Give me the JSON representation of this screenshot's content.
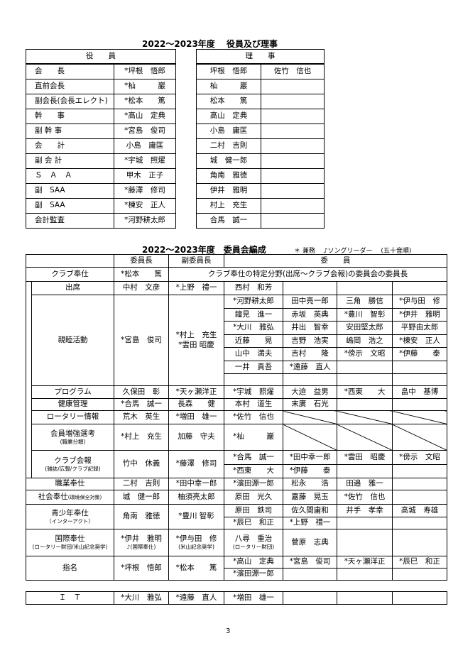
{
  "officers_section": {
    "title": "2022～2023年度　 役員及び理事",
    "officers_header": "役　　員",
    "directors_header": "理　　事",
    "officers": [
      {
        "role": "会　　長",
        "name": "*坪根　悟郎"
      },
      {
        "role": "直前会長",
        "name": "*杣　　　巖"
      },
      {
        "role": "副会長(会長エレクト)",
        "name": "*松本　　篤"
      },
      {
        "role": "幹　　事",
        "name": "*高山　定典"
      },
      {
        "role": "副 幹 事",
        "name": "*宮島　俊司"
      },
      {
        "role": "会　　計",
        "name": "小島　庸匡"
      },
      {
        "role": "副 会 計",
        "name": "*宇城　照燿"
      },
      {
        "role": "Ｓ　Ａ　Ａ",
        "name": "甲木　正子"
      },
      {
        "role": "副　SAA",
        "name": "*藤澤　修司"
      },
      {
        "role": "副　SAA",
        "name": "*棟安　正人"
      },
      {
        "role": "会計監査",
        "name": "*河野耕太郎"
      }
    ],
    "directors": [
      [
        "坪根　悟郎",
        "佐竹　信也"
      ],
      [
        "杣　　　巖",
        ""
      ],
      [
        "松本　　篤",
        ""
      ],
      [
        "高山　定典",
        ""
      ],
      [
        "小島　庸匡",
        ""
      ],
      [
        "二村　吉則",
        ""
      ],
      [
        "城　健一郎",
        ""
      ],
      [
        "角南　雅徳",
        ""
      ],
      [
        "伊井　雅明",
        ""
      ],
      [
        "村上　充生",
        ""
      ],
      [
        "合馬　誠一",
        ""
      ]
    ]
  },
  "committees": {
    "title": "2022～2023年度　委員会編成",
    "legend": "＊ 兼務　 ♪ソングリーダー　 (五十音順)",
    "headers": {
      "chair": "委員長",
      "vice": "副委員長",
      "members": "委　　員"
    },
    "club_service": {
      "label": "クラブ奉仕",
      "chair": "*松本　　篤",
      "note": "クラブ奉仕の特定分野(出席～クラブ会報)の委員会の委員長"
    },
    "items": [
      {
        "label": "出席",
        "indent": true,
        "chair": "中村　文彦",
        "vice": "*上野　禮一",
        "members": [
          [
            "西村　和芳",
            "",
            "",
            ""
          ]
        ]
      },
      {
        "label": "親睦活動",
        "indent": true,
        "chair": "*宮島　俊司",
        "vice": [
          "*村上　充生",
          "*雲田 昭慶"
        ],
        "members": [
          [
            "*河野耕太郎",
            "田中亮一郎",
            "三角　勝信",
            "*伊与田　修"
          ],
          [
            "鐘見　進一",
            "赤坂　英典",
            "*豊川　智彰",
            "*伊井　雅明"
          ],
          [
            "*大川　雅弘",
            "井出　智幸",
            "安田堅太郎",
            "平野由太郎"
          ],
          [
            "近藤　　晃",
            "吉野　浩実",
            "嶋岡　浩之",
            "*棟安　正人"
          ],
          [
            "山中　満夫",
            "吉村　　隆",
            "*傍示　文昭",
            "*伊藤　　泰"
          ],
          [
            "一井　真吾",
            "*遠藤　直人",
            "",
            ""
          ],
          [
            "",
            "",
            "",
            ""
          ]
        ]
      },
      {
        "label": "プログラム",
        "indent": true,
        "chair": "久保田　彰",
        "vice": "*天ヶ瀬洋正",
        "members": [
          [
            "*宇城　照燿",
            "大迫　益男",
            "*西東　　大",
            "畠中　基博"
          ]
        ]
      },
      {
        "label": "健康管理",
        "indent": true,
        "chair": "*合馬　誠一",
        "vice": "長森　　健",
        "members": [
          [
            "本村　道生",
            "末廣　石光",
            "",
            ""
          ]
        ]
      },
      {
        "label": "ロータリー情報",
        "indent": true,
        "chair": "荒木　英生",
        "vice": "*増田　雄一",
        "members": [
          [
            "*佐竹　信也",
            "",
            "",
            ""
          ]
        ],
        "struck_cells": [
          1,
          2,
          3
        ]
      },
      {
        "label": "会員増強選考",
        "label_note": "(職業分類)",
        "indent": true,
        "chair": "*村上　充生",
        "vice": "加藤　守夫",
        "members": [
          [
            "*杣　　　巖",
            "",
            "",
            ""
          ]
        ],
        "struck_cells": [
          1,
          2,
          3
        ]
      },
      {
        "label": "クラブ会報",
        "label_note": "(雑誌/広報/クラブ記録)",
        "indent": true,
        "chair": "竹中　休義",
        "vice": "*藤澤　修司",
        "members": [
          [
            "*合馬　誠一",
            "*田中幸一郎",
            "*雲田　昭慶",
            "*傍示　文昭"
          ],
          [
            "*西東　　大",
            "*伊藤　　泰",
            "",
            ""
          ]
        ]
      },
      {
        "label": "職業奉仕",
        "chair": "二村　吉則",
        "vice": "*田中幸一郎",
        "members": [
          [
            "*濱田源一郎",
            "松永　　浩",
            "田邉　雅一",
            ""
          ]
        ]
      },
      {
        "label": "社会奉仕",
        "label_inline_note": "(環境保全対策)",
        "chair": "城　健一郎",
        "vice": "柚須亮太郎",
        "members": [
          [
            "原田　光久",
            "嘉藤　晃玉",
            "*佐竹　信也",
            ""
          ]
        ]
      },
      {
        "label": "青少年奉仕",
        "label_note": "（インターアクト）",
        "chair": "角南　雅徳",
        "vice": "*豊川 智彰",
        "members": [
          [
            "原田　鉄司",
            "佐久間庸和",
            "井手　孝幸",
            "髙城　寿雄"
          ],
          [
            "*辰巳　和正",
            "*上野　禮一",
            "",
            ""
          ]
        ]
      },
      {
        "label": "国際奉仕",
        "label_note": "(ロータリー財団/米山記念奨学)",
        "chair": [
          "*伊井　雅明",
          "♪(国際奉仕)"
        ],
        "vice": [
          "*伊与田　修",
          "(米山記念奨学)"
        ],
        "members": [
          [
            {
              "name": "八尋　重治",
              "note": "(ロータリー財団)"
            },
            "菅原　志典",
            "",
            ""
          ]
        ]
      },
      {
        "label": "指名",
        "chair": "*坪根　悟郎",
        "vice": "*松本　　篤",
        "members": [
          [
            "*高山　定典",
            "*宮島　俊司",
            "*天ヶ瀬洋正",
            "*辰巳　和正"
          ],
          [
            "*濱田源一郎",
            "",
            "",
            ""
          ]
        ]
      }
    ]
  },
  "it": {
    "label": "Ｉ　Ｔ",
    "chair": "*大川　雅弘",
    "vice": "*遠藤　直人",
    "members": [
      "*増田　雄一",
      "",
      "",
      ""
    ]
  },
  "page_number": "3"
}
